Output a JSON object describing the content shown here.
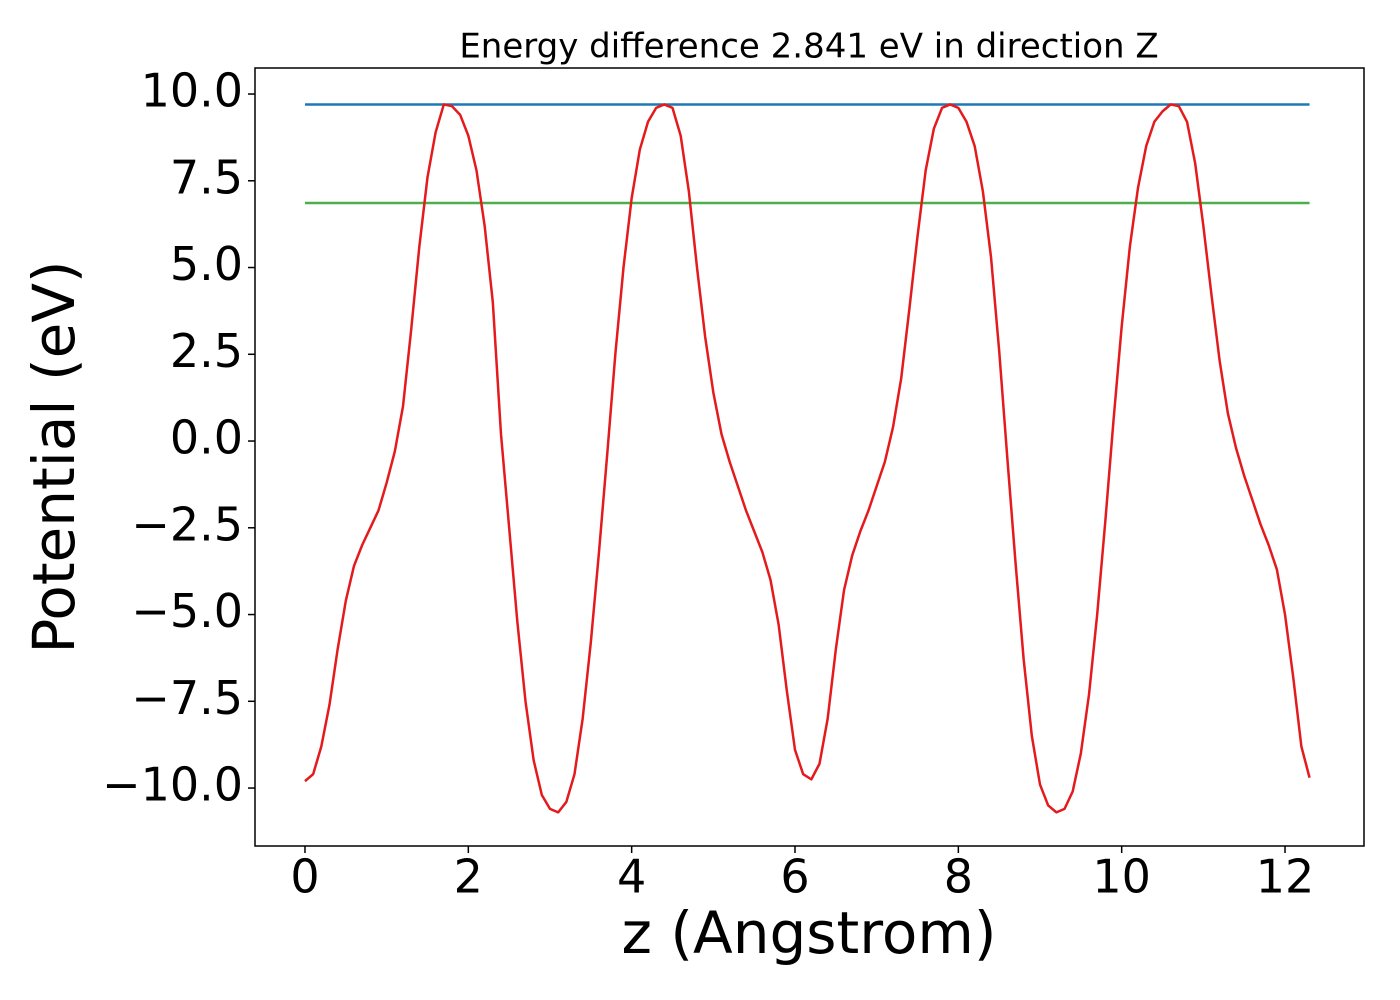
{
  "chart_data": {
    "type": "line",
    "title": "Energy difference 2.841 eV in direction Z",
    "xlabel": "z (Angstrom)",
    "ylabel": "Potential (eV)",
    "xlim": [
      -0.612,
      12.967
    ],
    "ylim": [
      -11.67,
      10.75
    ],
    "xticks": [
      0,
      2,
      4,
      6,
      8,
      10,
      12
    ],
    "yticks": [
      {
        "value": 10,
        "label": "10.0"
      },
      {
        "value": 7.5,
        "label": "7.5"
      },
      {
        "value": 5,
        "label": "5.0"
      },
      {
        "value": 2.5,
        "label": "2.5"
      },
      {
        "value": 0,
        "label": "0.0"
      },
      {
        "value": -2.5,
        "label": "−2.5"
      },
      {
        "value": -5,
        "label": "−5.0"
      },
      {
        "value": -7.5,
        "label": "−7.5"
      },
      {
        "value": -10,
        "label": "−10.0"
      }
    ],
    "grid": false,
    "series": [
      {
        "color": "#1f77b4",
        "x": [
          0,
          12.3
        ],
        "values": [
          9.7,
          9.7
        ]
      },
      {
        "color": "#4daf4a",
        "x": [
          0,
          12.3
        ],
        "values": [
          6.86,
          6.86
        ]
      },
      {
        "color": "#e41a1c",
        "x": [
          0,
          0.1,
          0.2,
          0.3,
          0.4,
          0.5,
          0.6,
          0.7,
          0.8,
          0.9,
          1.0,
          1.1,
          1.2,
          1.3,
          1.4,
          1.5,
          1.6,
          1.7,
          1.8,
          1.9,
          2.0,
          2.1,
          2.2,
          2.3,
          2.4,
          2.5,
          2.6,
          2.7,
          2.8,
          2.9,
          3.0,
          3.1,
          3.2,
          3.3,
          3.4,
          3.5,
          3.6,
          3.7,
          3.8,
          3.9,
          4.0,
          4.1,
          4.2,
          4.3,
          4.4,
          4.5,
          4.6,
          4.7,
          4.8,
          4.9,
          5.0,
          5.1,
          5.2,
          5.3,
          5.4,
          5.5,
          5.6,
          5.7,
          5.8,
          5.9,
          6.0,
          6.1,
          6.2,
          6.3,
          6.4,
          6.5,
          6.6,
          6.7,
          6.8,
          6.9,
          7.0,
          7.1,
          7.2,
          7.3,
          7.4,
          7.5,
          7.6,
          7.7,
          7.8,
          7.9,
          8.0,
          8.1,
          8.2,
          8.3,
          8.4,
          8.5,
          8.6,
          8.7,
          8.8,
          8.9,
          9.0,
          9.1,
          9.2,
          9.3,
          9.4,
          9.5,
          9.6,
          9.7,
          9.8,
          9.9,
          10.0,
          10.1,
          10.2,
          10.3,
          10.4,
          10.5,
          10.6,
          10.7,
          10.8,
          10.9,
          11.0,
          11.1,
          11.2,
          11.3,
          11.4,
          11.5,
          11.6,
          11.7,
          11.8,
          11.9,
          12.0,
          12.1,
          12.2,
          12.3
        ],
        "values": [
          -9.8,
          -9.6,
          -8.8,
          -7.6,
          -6.0,
          -4.6,
          -3.6,
          -3.0,
          -2.5,
          -2.0,
          -1.2,
          -0.3,
          1.0,
          3.2,
          5.6,
          7.6,
          8.9,
          9.7,
          9.65,
          9.4,
          8.8,
          7.8,
          6.2,
          4.0,
          0.2,
          -2.5,
          -5.2,
          -7.5,
          -9.2,
          -10.2,
          -10.6,
          -10.7,
          -10.4,
          -9.6,
          -8.0,
          -5.8,
          -3.2,
          -0.4,
          2.5,
          5.0,
          7.0,
          8.4,
          9.2,
          9.6,
          9.7,
          9.6,
          8.8,
          7.2,
          5.0,
          3.0,
          1.4,
          0.2,
          -0.6,
          -1.3,
          -2.0,
          -2.6,
          -3.2,
          -4.0,
          -5.3,
          -7.2,
          -8.9,
          -9.6,
          -9.75,
          -9.3,
          -8.0,
          -6.0,
          -4.3,
          -3.3,
          -2.6,
          -2.0,
          -1.3,
          -0.6,
          0.4,
          1.8,
          3.8,
          5.9,
          7.8,
          9.0,
          9.6,
          9.7,
          9.6,
          9.2,
          8.5,
          7.2,
          5.3,
          2.6,
          -0.5,
          -3.5,
          -6.3,
          -8.5,
          -9.9,
          -10.5,
          -10.7,
          -10.6,
          -10.1,
          -9.0,
          -7.3,
          -5.0,
          -2.3,
          0.6,
          3.3,
          5.6,
          7.3,
          8.5,
          9.2,
          9.5,
          9.7,
          9.65,
          9.2,
          8.0,
          6.2,
          4.2,
          2.3,
          0.8,
          -0.2,
          -1.0,
          -1.7,
          -2.4,
          -3.0,
          -3.7,
          -5.0,
          -6.8,
          -8.8,
          -9.7
        ]
      }
    ]
  }
}
